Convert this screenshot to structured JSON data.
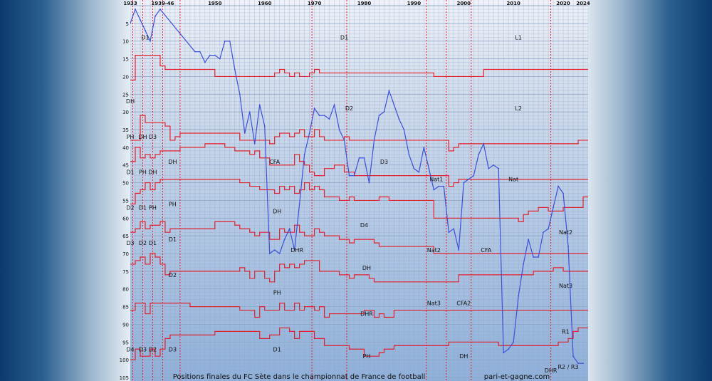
{
  "chart_data": {
    "type": "line",
    "title": "Positions finales du FC Sète dans le championnat de France de football",
    "credit": "pari-et-gagne.com",
    "xlim": [
      1933,
      2025
    ],
    "ylim": [
      0,
      106
    ],
    "y_inverted": true,
    "x_tick_labels": [
      {
        "value": 1933,
        "label": "1933"
      },
      {
        "value": 1939.5,
        "label": "1939-46"
      },
      {
        "value": 1950,
        "label": "1950"
      },
      {
        "value": 1960,
        "label": "1960"
      },
      {
        "value": 1970,
        "label": "1970"
      },
      {
        "value": 1980,
        "label": "1980"
      },
      {
        "value": 1990,
        "label": "1990"
      },
      {
        "value": 2000,
        "label": "2000"
      },
      {
        "value": 2010,
        "label": "2010"
      },
      {
        "value": 2020,
        "label": "2020"
      },
      {
        "value": 2024,
        "label": "2024"
      }
    ],
    "y_ticks": [
      5,
      10,
      15,
      20,
      25,
      30,
      35,
      40,
      45,
      50,
      55,
      60,
      65,
      70,
      75,
      80,
      85,
      90,
      95,
      100,
      105
    ],
    "grid": true,
    "colors": {
      "position_line": "#3c50d8",
      "division_boundary": "#e0202c",
      "grid": "#8fa4c4",
      "plot_top": "#eef1f8",
      "plot_bottom": "#8fb0da"
    },
    "series": [
      {
        "x": [
          1933,
          1934,
          1935,
          1936,
          1937,
          1938,
          1939,
          1946,
          1947,
          1948,
          1949,
          1950,
          1951,
          1952,
          1953,
          1954,
          1955,
          1956,
          1957,
          1958,
          1959,
          1960,
          1961,
          1962,
          1963,
          1964,
          1965,
          1966,
          1967,
          1968,
          1969,
          1970,
          1971,
          1972,
          1973,
          1974,
          1975,
          1976,
          1977,
          1978,
          1979,
          1980,
          1981,
          1982,
          1983,
          1984,
          1985,
          1986,
          1987,
          1988,
          1989,
          1990,
          1991,
          1992,
          1993,
          1994,
          1995,
          1996,
          1997,
          1998,
          1999,
          2000,
          2001,
          2002,
          2003,
          2004,
          2005,
          2006,
          2007,
          2008,
          2009,
          2010,
          2011,
          2012,
          2013,
          2014,
          2015,
          2016,
          2017,
          2018,
          2019,
          2020,
          2021,
          2022,
          2023,
          2024
        ],
        "y": [
          5,
          1,
          4,
          7,
          10,
          3,
          1,
          13,
          13,
          16,
          14,
          14,
          15,
          10,
          10,
          18,
          25,
          36,
          30,
          39,
          28,
          34,
          70,
          69,
          70,
          66,
          63,
          69,
          56,
          42,
          36,
          29,
          31,
          31,
          32,
          28,
          35,
          38,
          48,
          48,
          43,
          43,
          50,
          38,
          31,
          30,
          24,
          28,
          32,
          35,
          42,
          46,
          47,
          40,
          46,
          52,
          51,
          51,
          64,
          63,
          69,
          50,
          49,
          48,
          42,
          39,
          46,
          45,
          46,
          98,
          97,
          95,
          82,
          73,
          66,
          71,
          71,
          64,
          63,
          57,
          51,
          53,
          68,
          99,
          101,
          101
        ]
      }
    ],
    "division_labels": [
      {
        "x": 1936,
        "y": 9,
        "label": "D1"
      },
      {
        "x": 1976,
        "y": 9,
        "label": "D1"
      },
      {
        "x": 2011,
        "y": 9,
        "label": "L1"
      },
      {
        "x": 1933,
        "y": 27,
        "label": "DH"
      },
      {
        "x": 1977,
        "y": 29,
        "label": "D2"
      },
      {
        "x": 2011,
        "y": 29,
        "label": "L2"
      },
      {
        "x": 1933,
        "y": 37,
        "label": "PH"
      },
      {
        "x": 1935.5,
        "y": 37,
        "label": "DH"
      },
      {
        "x": 1937.5,
        "y": 37,
        "label": "D3"
      },
      {
        "x": 1933,
        "y": 47,
        "label": "D1"
      },
      {
        "x": 1935.5,
        "y": 47,
        "label": "PH"
      },
      {
        "x": 1937.5,
        "y": 47,
        "label": "DH"
      },
      {
        "x": 1941.5,
        "y": 44,
        "label": "DH"
      },
      {
        "x": 1962,
        "y": 44,
        "label": "CFA"
      },
      {
        "x": 1984,
        "y": 44,
        "label": "D3"
      },
      {
        "x": 1994.5,
        "y": 49,
        "label": "Nat1"
      },
      {
        "x": 2010,
        "y": 49,
        "label": "Nat"
      },
      {
        "x": 1933,
        "y": 57,
        "label": "D2"
      },
      {
        "x": 1935.5,
        "y": 57,
        "label": "D1"
      },
      {
        "x": 1937.5,
        "y": 57,
        "label": "PH"
      },
      {
        "x": 1941.5,
        "y": 56,
        "label": "PH"
      },
      {
        "x": 1962.5,
        "y": 58,
        "label": "DH"
      },
      {
        "x": 1980,
        "y": 62,
        "label": "D4"
      },
      {
        "x": 2020.5,
        "y": 64,
        "label": "Nat2"
      },
      {
        "x": 1933,
        "y": 67,
        "label": "D3"
      },
      {
        "x": 1935.5,
        "y": 67,
        "label": "D2"
      },
      {
        "x": 1937.5,
        "y": 67,
        "label": "D1"
      },
      {
        "x": 1941.5,
        "y": 66,
        "label": "D1"
      },
      {
        "x": 1966.5,
        "y": 69,
        "label": "DHR"
      },
      {
        "x": 1994,
        "y": 69,
        "label": "Nat2"
      },
      {
        "x": 2004.5,
        "y": 69,
        "label": "CFA"
      },
      {
        "x": 1980.5,
        "y": 74,
        "label": "DH"
      },
      {
        "x": 1941.5,
        "y": 76,
        "label": "D2"
      },
      {
        "x": 2020.5,
        "y": 79,
        "label": "Nat3"
      },
      {
        "x": 1962.5,
        "y": 81,
        "label": "PH"
      },
      {
        "x": 1994,
        "y": 84,
        "label": "Nat3"
      },
      {
        "x": 2000,
        "y": 84,
        "label": "CFA2"
      },
      {
        "x": 1980.5,
        "y": 87,
        "label": "DHR"
      },
      {
        "x": 2020.5,
        "y": 92,
        "label": "R1"
      },
      {
        "x": 1933,
        "y": 97,
        "label": "D4"
      },
      {
        "x": 1935.5,
        "y": 97,
        "label": "D3"
      },
      {
        "x": 1937.5,
        "y": 97,
        "label": "D2"
      },
      {
        "x": 1941.5,
        "y": 97,
        "label": "D3"
      },
      {
        "x": 1962.5,
        "y": 97,
        "label": "D1"
      },
      {
        "x": 1980.5,
        "y": 99,
        "label": "PH"
      },
      {
        "x": 2000,
        "y": 99,
        "label": "DH"
      },
      {
        "x": 2017.5,
        "y": 103,
        "label": "DHR"
      },
      {
        "x": 2021,
        "y": 102,
        "label": "R2 / R3"
      }
    ],
    "division_boundaries": [
      {
        "x": [
          1933,
          1934,
          1939,
          1940,
          1950,
          1961,
          1962,
          1963,
          1964,
          1965,
          1966,
          1967,
          1968,
          1969,
          1970,
          1971,
          1994,
          1999,
          2004,
          2023,
          2026
        ],
        "y": [
          21,
          14,
          17,
          18,
          20,
          20,
          19,
          18,
          19,
          20,
          19,
          20,
          20,
          19,
          18,
          19,
          20,
          20,
          18,
          18,
          18
        ]
      },
      {
        "x": [
          1933,
          1934,
          1935,
          1936,
          1939,
          1940,
          1941,
          1942,
          1943,
          1950,
          1955,
          1961,
          1962,
          1963,
          1965,
          1966,
          1967,
          1968,
          1970,
          1971,
          1972,
          1975,
          1976,
          1977,
          1993,
          1994,
          1997,
          1998,
          1999,
          2003,
          2004,
          2023,
          2026
        ],
        "y": [
          38,
          38,
          31,
          33,
          33,
          34,
          38,
          37,
          36,
          36,
          38,
          39,
          37,
          36,
          37,
          36,
          35,
          37,
          35,
          37,
          38,
          38,
          37,
          38,
          38,
          38,
          41,
          40,
          39,
          39,
          39,
          38,
          37
        ]
      },
      {
        "x": [
          1933,
          1934,
          1935,
          1936,
          1937,
          1938,
          1939,
          1943,
          1945,
          1948,
          1952,
          1954,
          1955,
          1957,
          1958,
          1959,
          1960,
          1961,
          1964,
          1966,
          1967,
          1968,
          1969,
          1970,
          1972,
          1973,
          1974,
          1976,
          1977,
          1978,
          1983,
          1985,
          1987,
          1993,
          1994,
          1997,
          1998,
          1999,
          2003,
          2004,
          2023,
          2026
        ],
        "y": [
          44,
          40,
          43,
          42,
          43,
          42,
          41,
          40,
          40,
          39,
          40,
          41,
          41,
          42,
          41,
          43,
          43,
          45,
          45,
          42,
          44,
          45,
          47,
          48,
          46,
          46,
          45,
          47,
          47,
          48,
          48,
          48,
          48,
          48,
          48,
          51,
          50,
          49,
          49,
          49,
          49,
          48
        ]
      },
      {
        "x": [
          1933,
          1934,
          1935,
          1936,
          1937,
          1938,
          1939,
          1943,
          1945,
          1950,
          1955,
          1957,
          1958,
          1959,
          1961,
          1962,
          1963,
          1964,
          1965,
          1966,
          1967,
          1968,
          1969,
          1970,
          1971,
          1972,
          1975,
          1977,
          1978,
          1982,
          1983,
          1985,
          1987,
          1993,
          1994,
          2007,
          2011,
          2012,
          2013,
          2014,
          2015,
          2017,
          2018,
          2020,
          2024,
          2026
        ],
        "y": [
          56,
          53,
          52,
          50,
          52,
          50,
          49,
          49,
          49,
          49,
          50,
          51,
          51,
          52,
          52,
          53,
          51,
          52,
          51,
          53,
          52,
          50,
          52,
          51,
          52,
          54,
          55,
          54,
          55,
          55,
          54,
          55,
          55,
          55,
          60,
          60,
          61,
          59,
          58,
          58,
          57,
          58,
          58,
          57,
          54,
          54
        ]
      },
      {
        "x": [
          1933,
          1934,
          1935,
          1936,
          1937,
          1938,
          1939,
          1940,
          1941,
          1943,
          1950,
          1952,
          1954,
          1955,
          1957,
          1958,
          1959,
          1961,
          1962,
          1963,
          1964,
          1966,
          1967,
          1968,
          1970,
          1971,
          1972,
          1974,
          1975,
          1977,
          1978,
          1981,
          1982,
          1983,
          1985,
          1987,
          1993,
          1994,
          2007,
          2011,
          2012,
          2013,
          2014,
          2015,
          2017,
          2018,
          2020,
          2024,
          2026
        ],
        "y": [
          64,
          63,
          61,
          63,
          62,
          62,
          61,
          64,
          63,
          63,
          61,
          61,
          62,
          63,
          64,
          65,
          64,
          66,
          66,
          63,
          64,
          62,
          64,
          65,
          63,
          64,
          65,
          65,
          66,
          67,
          66,
          66,
          67,
          68,
          68,
          68,
          68,
          70,
          70,
          70,
          70,
          70,
          70,
          70,
          70,
          70,
          70,
          70,
          70
        ]
      },
      {
        "x": [
          1933,
          1934,
          1935,
          1936,
          1937,
          1938,
          1939,
          1940,
          1941,
          1943,
          1945,
          1950,
          1954,
          1955,
          1956,
          1957,
          1958,
          1960,
          1961,
          1962,
          1963,
          1964,
          1965,
          1966,
          1967,
          1968,
          1970,
          1971,
          1973,
          1975,
          1977,
          1978,
          1980,
          1981,
          1982,
          1983,
          1985,
          1987,
          1993,
          1994,
          1997,
          1998,
          1999,
          2003,
          2004,
          2007,
          2009,
          2012,
          2013,
          2014,
          2015,
          2017,
          2018,
          2020,
          2023,
          2026
        ],
        "y": [
          73,
          72,
          71,
          73,
          70,
          71,
          73,
          76,
          75,
          75,
          75,
          75,
          75,
          74,
          75,
          77,
          75,
          77,
          78,
          75,
          73,
          74,
          73,
          74,
          73,
          72,
          72,
          75,
          75,
          76,
          77,
          76,
          76,
          77,
          78,
          78,
          78,
          78,
          78,
          78,
          78,
          78,
          76,
          76,
          76,
          76,
          76,
          76,
          76,
          75,
          75,
          75,
          74,
          75,
          75,
          72
        ]
      },
      {
        "x": [
          1933,
          1934,
          1935,
          1936,
          1937,
          1938,
          1939,
          1943,
          1945,
          1950,
          1955,
          1956,
          1957,
          1958,
          1959,
          1960,
          1961,
          1962,
          1963,
          1964,
          1965,
          1966,
          1967,
          1968,
          1970,
          1971,
          1972,
          1973,
          1975,
          1976,
          1977,
          1978,
          1980,
          1981,
          1982,
          1983,
          1984,
          1986,
          1988,
          1990,
          1993,
          1994,
          2007,
          2011,
          2013,
          2017,
          2023,
          2026
        ],
        "y": [
          86,
          84,
          84,
          87,
          84,
          84,
          84,
          84,
          85,
          85,
          86,
          86,
          86,
          88,
          85,
          86,
          86,
          86,
          84,
          86,
          86,
          84,
          86,
          85,
          86,
          85,
          88,
          87,
          87,
          87,
          87,
          87,
          86,
          86,
          88,
          87,
          88,
          86,
          86,
          86,
          86,
          86,
          86,
          86,
          86,
          86,
          86,
          86
        ]
      },
      {
        "x": [
          1933,
          1934,
          1935,
          1936,
          1937,
          1938,
          1939,
          1940,
          1941,
          1943,
          1950,
          1955,
          1957,
          1959,
          1961,
          1962,
          1963,
          1965,
          1966,
          1967,
          1968,
          1970,
          1972,
          1973,
          1975,
          1977,
          1978,
          1980,
          1981,
          1982,
          1983,
          1984,
          1986,
          1988,
          1990,
          1993,
          1997,
          1999,
          2000,
          2003,
          2007,
          2009,
          2012,
          2017,
          2019,
          2020,
          2021,
          2022,
          2023,
          2026
        ],
        "y": [
          100,
          97,
          99,
          99,
          97,
          99,
          97,
          94,
          93,
          93,
          92,
          92,
          92,
          94,
          93,
          93,
          91,
          92,
          94,
          92,
          92,
          94,
          96,
          96,
          96,
          97,
          97,
          99,
          99,
          99,
          98,
          97,
          96,
          96,
          96,
          96,
          95,
          95,
          95,
          95,
          96,
          96,
          96,
          96,
          95,
          95,
          94,
          92,
          91,
          91
        ]
      }
    ],
    "dotted_vertical_x": [
      1933.5,
      1935.5,
      1937.5,
      1939.5,
      1943,
      1969.5,
      1976.5,
      1992.5,
      1996.5,
      2001.5,
      2017.5
    ]
  }
}
